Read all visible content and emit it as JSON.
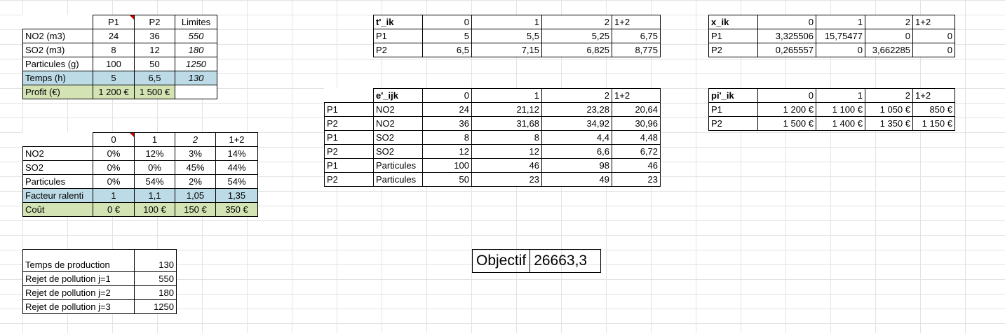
{
  "products_table": {
    "headers": [
      "P1",
      "P2",
      "Limites"
    ],
    "rows": [
      {
        "label": "NO2 (m3)",
        "p1": "24",
        "p2": "36",
        "limit": "550"
      },
      {
        "label": "SO2 (m3)",
        "p1": "8",
        "p2": "12",
        "limit": "180"
      },
      {
        "label": "Particules (g)",
        "p1": "100",
        "p2": "50",
        "limit": "1250"
      },
      {
        "label": "Temps (h)",
        "p1": "5",
        "p2": "6,5",
        "limit": "130"
      },
      {
        "label": "Profit (€)",
        "p1": "1 200 €",
        "p2": "1 500 €",
        "limit": ""
      }
    ]
  },
  "reduction_table": {
    "headers": [
      "0",
      "1",
      "2",
      "1+2"
    ],
    "rows": [
      {
        "label": "NO2",
        "v": [
          "0%",
          "12%",
          "3%",
          "14%"
        ]
      },
      {
        "label": "SO2",
        "v": [
          "0%",
          "0%",
          "45%",
          "44%"
        ]
      },
      {
        "label": "Particules",
        "v": [
          "0%",
          "54%",
          "2%",
          "54%"
        ]
      },
      {
        "label": "Facteur ralenti",
        "v": [
          "1",
          "1,1",
          "1,05",
          "1,35"
        ]
      },
      {
        "label": "Coût",
        "v": [
          "0 €",
          "100 €",
          "150 €",
          "350 €"
        ]
      }
    ]
  },
  "constraints_table": {
    "rows": [
      {
        "label": "Temps de production",
        "value": "130"
      },
      {
        "label": "Rejet de pollution j=1",
        "value": "550"
      },
      {
        "label": "Rejet de pollution j=2",
        "value": "180"
      },
      {
        "label": "Rejet de pollution j=3",
        "value": "1250"
      }
    ]
  },
  "t_table": {
    "title": "t'_ik",
    "headers": [
      "0",
      "1",
      "2",
      "1+2"
    ],
    "rows": [
      {
        "label": "P1",
        "v": [
          "5",
          "5,5",
          "5,25",
          "6,75"
        ]
      },
      {
        "label": "P2",
        "v": [
          "6,5",
          "7,15",
          "6,825",
          "8,775"
        ]
      }
    ]
  },
  "e_table": {
    "title": "e'_ijk",
    "headers": [
      "0",
      "1",
      "2",
      "1+2"
    ],
    "rows": [
      {
        "product": "P1",
        "pollutant": "NO2",
        "v": [
          "24",
          "21,12",
          "23,28",
          "20,64"
        ]
      },
      {
        "product": "P2",
        "pollutant": "NO2",
        "v": [
          "36",
          "31,68",
          "34,92",
          "30,96"
        ]
      },
      {
        "product": "P1",
        "pollutant": "SO2",
        "v": [
          "8",
          "8",
          "4,4",
          "4,48"
        ]
      },
      {
        "product": "P2",
        "pollutant": "SO2",
        "v": [
          "12",
          "12",
          "6,6",
          "6,72"
        ]
      },
      {
        "product": "P1",
        "pollutant": "Particules",
        "v": [
          "100",
          "46",
          "98",
          "46"
        ]
      },
      {
        "product": "P2",
        "pollutant": "Particules",
        "v": [
          "50",
          "23",
          "49",
          "23"
        ]
      }
    ]
  },
  "x_table": {
    "title": "x_ik",
    "headers": [
      "0",
      "1",
      "2",
      "1+2"
    ],
    "rows": [
      {
        "label": "P1",
        "v": [
          "3,325506",
          "15,75477",
          "0",
          "0"
        ]
      },
      {
        "label": "P2",
        "v": [
          "0,265557",
          "0",
          "3,662285",
          "0"
        ]
      }
    ]
  },
  "pi_table": {
    "title": "pi'_ik",
    "headers": [
      "0",
      "1",
      "2",
      "1+2"
    ],
    "rows": [
      {
        "label": "P1",
        "v": [
          "1 200 €",
          "1 100 €",
          "1 050 €",
          "850 €"
        ]
      },
      {
        "label": "P2",
        "v": [
          "1 500 €",
          "1 400 €",
          "1 350 €",
          "1 150 €"
        ]
      }
    ]
  },
  "objective": {
    "label": "Objectif",
    "value": "26663,3"
  },
  "colors": {
    "blue_fill": "#bcdbe6",
    "green_fill": "#d3e3b3",
    "comment_marker": "#c00000"
  }
}
